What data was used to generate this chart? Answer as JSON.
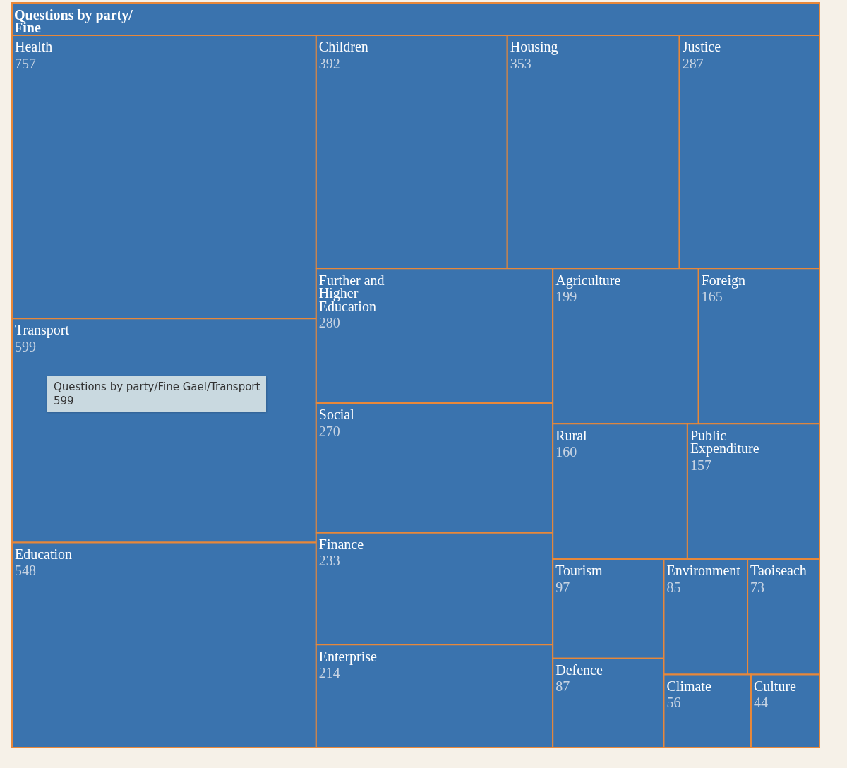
{
  "chart_data": {
    "type": "other",
    "title": "Questions by party/ Fine",
    "categories": [
      "Health",
      "Transport",
      "Education",
      "Children",
      "Housing",
      "Justice",
      "Further and Higher Education",
      "Social",
      "Finance",
      "Enterprise",
      "Agriculture",
      "Foreign",
      "Rural",
      "Public Expenditure",
      "Tourism",
      "Defence",
      "Environment",
      "Taoiseach",
      "Climate",
      "Culture"
    ],
    "values": [
      757,
      599,
      548,
      392,
      353,
      287,
      280,
      270,
      233,
      214,
      199,
      165,
      160,
      157,
      97,
      87,
      85,
      73,
      56,
      44
    ],
    "color": "#3a73ae",
    "data_labels": true,
    "annotations": [
      "Questions by party/Fine Gael/Transport\n599"
    ]
  }
}
